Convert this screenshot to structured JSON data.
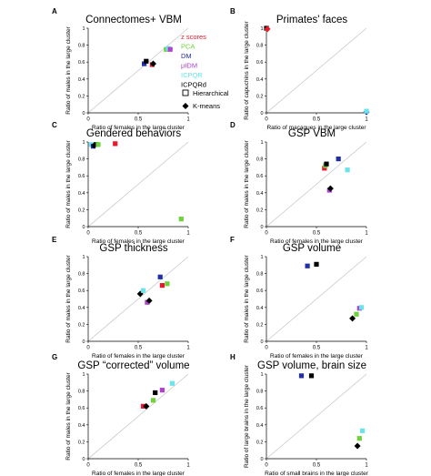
{
  "method_legend": [
    {
      "label": "z scores",
      "color": "#e8192c"
    },
    {
      "label": "PCA",
      "color": "#6fd13c"
    },
    {
      "label": "DM",
      "color": "#1f2fa8"
    },
    {
      "label": "μIDM",
      "color": "#b23fd0"
    },
    {
      "label": "ICPQR",
      "color": "#6ae4ea"
    },
    {
      "label": "ICPQRd",
      "color": "#000000"
    }
  ],
  "shape_legend": [
    {
      "label": "Hierarchical",
      "shape": "square"
    },
    {
      "label": "K-means",
      "shape": "diamond"
    }
  ],
  "chart_data": [
    {
      "type": "scatter",
      "panel": "A",
      "title": "Connectomes+ VBM",
      "xlabel": "Ratio of females in the large cluster",
      "ylabel": "Ratio of males in the large cluster",
      "xlim": [
        0,
        1
      ],
      "ylim": [
        0,
        1
      ],
      "xticks": [
        "0",
        "0.5",
        "1"
      ],
      "yticks": [
        "0",
        "0.2",
        "0.4",
        "0.6",
        "0.8",
        "1"
      ],
      "points": [
        {
          "x": 0.56,
          "y": 0.58,
          "method": "DM",
          "shape": "square"
        },
        {
          "x": 0.58,
          "y": 0.61,
          "method": "ICPQRd",
          "shape": "square"
        },
        {
          "x": 0.64,
          "y": 0.57,
          "method": "z scores",
          "shape": "square"
        },
        {
          "x": 0.65,
          "y": 0.58,
          "method": "ICPQRd",
          "shape": "diamond"
        },
        {
          "x": 0.78,
          "y": 0.75,
          "method": "PCA",
          "shape": "square"
        },
        {
          "x": 0.8,
          "y": 0.76,
          "method": "ICPQR",
          "shape": "square"
        },
        {
          "x": 0.82,
          "y": 0.75,
          "method": "μIDM",
          "shape": "square"
        }
      ]
    },
    {
      "type": "scatter",
      "panel": "B",
      "title": "Primates' faces",
      "xlabel": "Ratio of macaques in the large cluster",
      "ylabel": "Ratio of capuchins in the large cluster",
      "xlim": [
        0,
        1
      ],
      "ylim": [
        0,
        1
      ],
      "xticks": [
        "0",
        "0.5",
        "1"
      ],
      "yticks": [
        "0",
        "0.2",
        "0.4",
        "0.6",
        "0.8",
        "1"
      ],
      "points": [
        {
          "x": 0.0,
          "y": 1.0,
          "method": "ICPQRd",
          "shape": "square"
        },
        {
          "x": 0.01,
          "y": 0.99,
          "method": "z scores",
          "shape": "diamond"
        },
        {
          "x": 1.0,
          "y": 0.01,
          "method": "DM",
          "shape": "diamond"
        },
        {
          "x": 1.0,
          "y": 0.02,
          "method": "ICPQR",
          "shape": "square"
        }
      ]
    },
    {
      "type": "scatter",
      "panel": "C",
      "title": "Gendered behaviors",
      "xlabel": "Ratio of females in the large cluster",
      "ylabel": "Ratio of males in the large cluster",
      "xlim": [
        0,
        1
      ],
      "ylim": [
        0,
        1
      ],
      "xticks": [
        "0",
        "0.5",
        "1"
      ],
      "yticks": [
        "0",
        "0.2",
        "0.4",
        "0.6",
        "0.8",
        "1"
      ],
      "points": [
        {
          "x": 0.03,
          "y": 0.97,
          "method": "ICPQR",
          "shape": "square"
        },
        {
          "x": 0.05,
          "y": 0.95,
          "method": "DM",
          "shape": "square"
        },
        {
          "x": 0.06,
          "y": 0.96,
          "method": "ICPQRd",
          "shape": "diamond"
        },
        {
          "x": 0.08,
          "y": 0.97,
          "method": "ICPQRd",
          "shape": "square"
        },
        {
          "x": 0.1,
          "y": 0.97,
          "method": "PCA",
          "shape": "square"
        },
        {
          "x": 0.27,
          "y": 0.98,
          "method": "z scores",
          "shape": "square"
        },
        {
          "x": 0.93,
          "y": 0.09,
          "method": "PCA",
          "shape": "square"
        }
      ]
    },
    {
      "type": "scatter",
      "panel": "D",
      "title": "GSP VBM",
      "xlabel": "Ratio of females in the large cluster",
      "ylabel": "Ratio of males in the large cluster",
      "xlim": [
        0,
        1
      ],
      "ylim": [
        0,
        1
      ],
      "xticks": [
        "0",
        "0.5",
        "1"
      ],
      "yticks": [
        "0",
        "0.2",
        "0.4",
        "0.6",
        "0.8",
        "1"
      ],
      "points": [
        {
          "x": 0.58,
          "y": 0.69,
          "method": "z scores",
          "shape": "square"
        },
        {
          "x": 0.59,
          "y": 0.72,
          "method": "PCA",
          "shape": "square"
        },
        {
          "x": 0.6,
          "y": 0.74,
          "method": "ICPQRd",
          "shape": "square"
        },
        {
          "x": 0.63,
          "y": 0.43,
          "method": "μIDM",
          "shape": "square"
        },
        {
          "x": 0.64,
          "y": 0.45,
          "method": "ICPQRd",
          "shape": "diamond"
        },
        {
          "x": 0.72,
          "y": 0.8,
          "method": "DM",
          "shape": "square"
        },
        {
          "x": 0.81,
          "y": 0.67,
          "method": "ICPQR",
          "shape": "square"
        }
      ]
    },
    {
      "type": "scatter",
      "panel": "E",
      "title": "GSP thickness",
      "xlabel": "Ratio of females in the large cluster",
      "ylabel": "Ratio of males in the large cluster",
      "xlim": [
        0,
        1
      ],
      "ylim": [
        0,
        1
      ],
      "xticks": [
        "0",
        "0.5",
        "1"
      ],
      "yticks": [
        "0",
        "0.2",
        "0.4",
        "0.6",
        "0.8",
        "1"
      ],
      "points": [
        {
          "x": 0.52,
          "y": 0.56,
          "method": "ICPQRd",
          "shape": "diamond"
        },
        {
          "x": 0.55,
          "y": 0.6,
          "method": "ICPQR",
          "shape": "square"
        },
        {
          "x": 0.59,
          "y": 0.46,
          "method": "μIDM",
          "shape": "square"
        },
        {
          "x": 0.61,
          "y": 0.48,
          "method": "ICPQRd",
          "shape": "diamond"
        },
        {
          "x": 0.72,
          "y": 0.76,
          "method": "DM",
          "shape": "square"
        },
        {
          "x": 0.74,
          "y": 0.66,
          "method": "z scores",
          "shape": "square"
        },
        {
          "x": 0.79,
          "y": 0.68,
          "method": "PCA",
          "shape": "square"
        }
      ]
    },
    {
      "type": "scatter",
      "panel": "F",
      "title": "GSP volume",
      "xlabel": "Ratio of females in the large cluster",
      "ylabel": "Ratio of males in the large cluster",
      "xlim": [
        0,
        1
      ],
      "ylim": [
        0,
        1
      ],
      "xticks": [
        "0",
        "0.5",
        "1"
      ],
      "yticks": [
        "0",
        "0.2",
        "0.4",
        "0.6",
        "0.8",
        "1"
      ],
      "points": [
        {
          "x": 0.41,
          "y": 0.89,
          "method": "DM",
          "shape": "square"
        },
        {
          "x": 0.5,
          "y": 0.91,
          "method": "ICPQRd",
          "shape": "square"
        },
        {
          "x": 0.86,
          "y": 0.27,
          "method": "ICPQRd",
          "shape": "diamond"
        },
        {
          "x": 0.9,
          "y": 0.32,
          "method": "PCA",
          "shape": "square"
        },
        {
          "x": 0.93,
          "y": 0.39,
          "method": "μIDM",
          "shape": "square"
        },
        {
          "x": 0.95,
          "y": 0.4,
          "method": "ICPQR",
          "shape": "square"
        }
      ]
    },
    {
      "type": "scatter",
      "panel": "G",
      "title": "GSP “corrected” volume",
      "xlabel": "Ratio of females in the large cluster",
      "ylabel": "Ratio of males in the large cluster",
      "xlim": [
        0,
        1
      ],
      "ylim": [
        0,
        1
      ],
      "xticks": [
        "0",
        "0.5",
        "1"
      ],
      "yticks": [
        "0",
        "0.2",
        "0.4",
        "0.6",
        "0.8",
        "1"
      ],
      "points": [
        {
          "x": 0.55,
          "y": 0.62,
          "method": "z scores",
          "shape": "square"
        },
        {
          "x": 0.58,
          "y": 0.62,
          "method": "ICPQRd",
          "shape": "diamond"
        },
        {
          "x": 0.65,
          "y": 0.69,
          "method": "PCA",
          "shape": "square"
        },
        {
          "x": 0.67,
          "y": 0.78,
          "method": "ICPQRd",
          "shape": "square"
        },
        {
          "x": 0.74,
          "y": 0.81,
          "method": "μIDM",
          "shape": "square"
        },
        {
          "x": 0.84,
          "y": 0.89,
          "method": "ICPQR",
          "shape": "square"
        }
      ]
    },
    {
      "type": "scatter",
      "panel": "H",
      "title": "GSP volume, brain size",
      "xlabel": "Ratio of small brains in the large cluster",
      "ylabel": "Ratio of large brains in the large cluster",
      "xlim": [
        0,
        1
      ],
      "ylim": [
        0,
        1
      ],
      "xticks": [
        "0",
        "0.5",
        "1"
      ],
      "yticks": [
        "0",
        "0.2",
        "0.4",
        "0.6",
        "0.8",
        "1"
      ],
      "points": [
        {
          "x": 0.35,
          "y": 0.98,
          "method": "DM",
          "shape": "square"
        },
        {
          "x": 0.45,
          "y": 0.98,
          "method": "ICPQRd",
          "shape": "square"
        },
        {
          "x": 0.91,
          "y": 0.15,
          "method": "ICPQRd",
          "shape": "diamond"
        },
        {
          "x": 0.93,
          "y": 0.24,
          "method": "PCA",
          "shape": "square"
        },
        {
          "x": 0.96,
          "y": 0.33,
          "method": "ICPQR",
          "shape": "square"
        }
      ]
    }
  ]
}
